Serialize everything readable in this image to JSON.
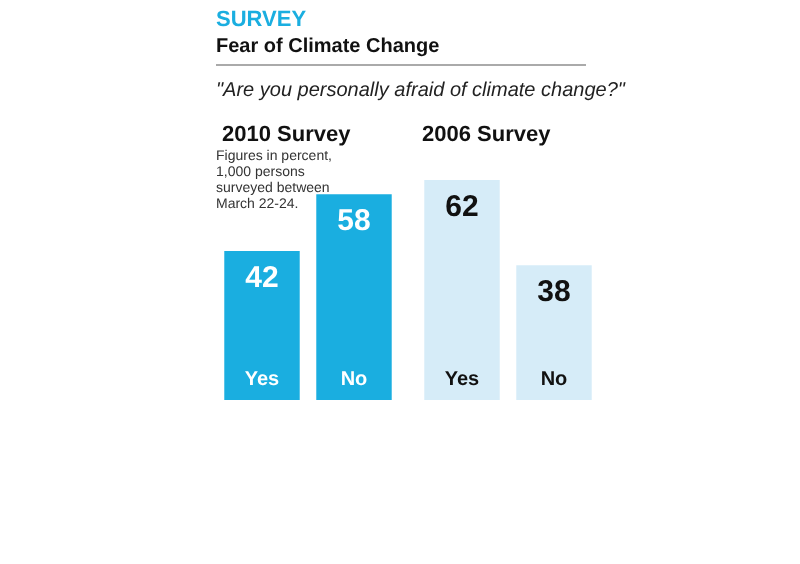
{
  "chart_data": [
    {
      "type": "other",
      "title": "SURVEY",
      "subtitle": "Fear of Climate Change",
      "annotations": [
        "\"Are you personally afraid of climate change?\""
      ]
    },
    {
      "type": "bar",
      "title": "2010 Survey",
      "annotations": [
        "Figures in percent, 1,000 persons surveyed between March 22-24."
      ],
      "categories": [
        "Yes",
        "No"
      ],
      "values": [
        42,
        58
      ],
      "colors": [
        "#1aaee0",
        "#1aaee0"
      ],
      "data_labels": true
    },
    {
      "type": "bar",
      "title": "2006 Survey",
      "categories": [
        "Yes",
        "No"
      ],
      "values": [
        62,
        38
      ],
      "colors": [
        "#d6ecf8",
        "#d6ecf8"
      ],
      "data_labels": true
    }
  ]
}
